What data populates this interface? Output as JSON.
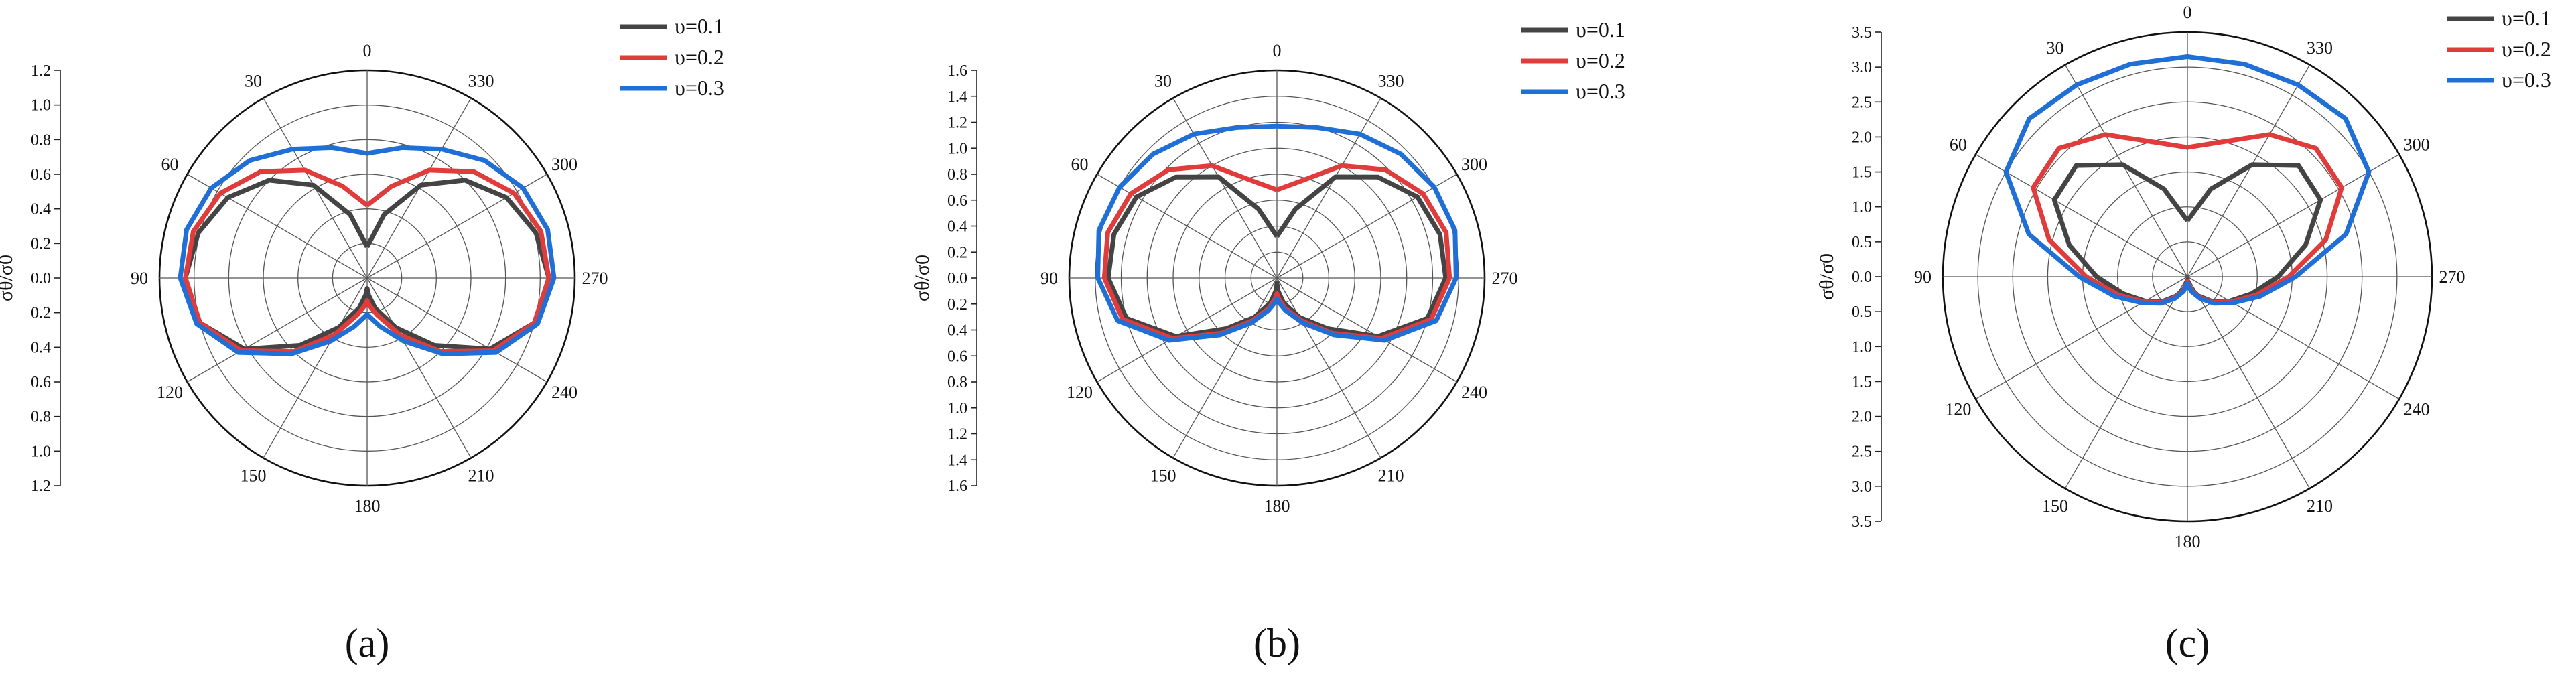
{
  "chart_data": [
    {
      "type": "polar-line",
      "panel_label": "(a)",
      "ylabel": "σθ/σ0",
      "rmax": 1.2,
      "ticks": [
        "0.0",
        "0.2",
        "0.4",
        "0.6",
        "0.8",
        "1.0",
        "1.2"
      ],
      "angle_labels": [
        "0",
        "30",
        "60",
        "90",
        "120",
        "150",
        "180",
        "210",
        "240",
        "270",
        "300",
        "330"
      ],
      "legend": [
        "υ=0.1",
        "υ=0.2",
        "υ=0.3"
      ],
      "series": [
        {
          "name": "υ=0.1",
          "color": "#444444",
          "theta": [
            0,
            15,
            30,
            45,
            60,
            75,
            90,
            105,
            120,
            135,
            150,
            165,
            175,
            180,
            185,
            195,
            210,
            225,
            240,
            255,
            270,
            285,
            300,
            315,
            330,
            345,
            360
          ],
          "r": [
            0.18,
            0.38,
            0.62,
            0.8,
            0.93,
            1.01,
            1.05,
            1.0,
            0.82,
            0.55,
            0.33,
            0.18,
            0.1,
            0.06,
            0.1,
            0.18,
            0.33,
            0.55,
            0.82,
            1.0,
            1.05,
            1.01,
            0.93,
            0.8,
            0.62,
            0.38,
            0.18
          ]
        },
        {
          "name": "υ=0.2",
          "color": "#e03c3c",
          "theta": [
            0,
            15,
            30,
            45,
            60,
            75,
            90,
            105,
            120,
            135,
            150,
            165,
            175,
            180,
            185,
            195,
            210,
            225,
            240,
            255,
            270,
            285,
            300,
            315,
            330,
            345,
            360
          ],
          "r": [
            0.42,
            0.55,
            0.72,
            0.87,
            0.98,
            1.04,
            1.05,
            1.0,
            0.84,
            0.6,
            0.38,
            0.22,
            0.16,
            0.13,
            0.16,
            0.22,
            0.38,
            0.6,
            0.84,
            1.0,
            1.05,
            1.04,
            0.98,
            0.87,
            0.72,
            0.55,
            0.42
          ]
        },
        {
          "name": "υ=0.3",
          "color": "#1f6fd6",
          "theta": [
            0,
            15,
            30,
            45,
            60,
            75,
            90,
            105,
            120,
            135,
            150,
            165,
            175,
            180,
            185,
            195,
            210,
            225,
            240,
            255,
            270,
            285,
            300,
            315,
            330,
            345,
            360
          ],
          "r": [
            0.72,
            0.78,
            0.86,
            0.96,
            1.04,
            1.08,
            1.08,
            1.02,
            0.86,
            0.62,
            0.42,
            0.29,
            0.23,
            0.21,
            0.23,
            0.29,
            0.42,
            0.62,
            0.86,
            1.02,
            1.08,
            1.08,
            1.04,
            0.96,
            0.86,
            0.78,
            0.72
          ]
        }
      ]
    },
    {
      "type": "polar-line",
      "panel_label": "(b)",
      "ylabel": "σθ/σ0",
      "rmax": 1.6,
      "ticks": [
        "0.0",
        "0.2",
        "0.4",
        "0.6",
        "0.8",
        "1.0",
        "1.2",
        "1.4",
        "1.6"
      ],
      "angle_labels": [
        "0",
        "30",
        "60",
        "90",
        "120",
        "150",
        "180",
        "210",
        "240",
        "270",
        "300",
        "330"
      ],
      "legend": [
        "υ=0.1",
        "υ=0.2",
        "υ=0.3"
      ],
      "series": [
        {
          "name": "υ=0.1",
          "color": "#444444",
          "theta": [
            0,
            15,
            30,
            45,
            60,
            75,
            90,
            105,
            120,
            135,
            150,
            165,
            175,
            180,
            185,
            195,
            210,
            225,
            240,
            255,
            270,
            285,
            300,
            315,
            330,
            345,
            360
          ],
          "r": [
            0.32,
            0.55,
            0.9,
            1.1,
            1.25,
            1.3,
            1.3,
            1.2,
            0.9,
            0.55,
            0.35,
            0.2,
            0.1,
            0.04,
            0.1,
            0.2,
            0.35,
            0.55,
            0.9,
            1.2,
            1.3,
            1.3,
            1.25,
            1.1,
            0.9,
            0.55,
            0.32
          ]
        },
        {
          "name": "υ=0.2",
          "color": "#e03c3c",
          "theta": [
            0,
            15,
            30,
            45,
            60,
            75,
            90,
            105,
            120,
            135,
            150,
            165,
            175,
            180,
            185,
            195,
            210,
            225,
            240,
            255,
            270,
            285,
            300,
            315,
            330,
            345,
            360
          ],
          "r": [
            0.68,
            0.78,
            1.0,
            1.18,
            1.3,
            1.35,
            1.33,
            1.23,
            0.93,
            0.6,
            0.38,
            0.24,
            0.16,
            0.12,
            0.16,
            0.24,
            0.38,
            0.6,
            0.93,
            1.23,
            1.33,
            1.35,
            1.3,
            1.18,
            1.0,
            0.78,
            0.68
          ]
        },
        {
          "name": "υ=0.3",
          "color": "#1f6fd6",
          "theta": [
            0,
            15,
            30,
            45,
            60,
            75,
            90,
            105,
            120,
            135,
            150,
            165,
            175,
            180,
            185,
            195,
            210,
            225,
            240,
            255,
            270,
            285,
            300,
            315,
            330,
            345,
            360
          ],
          "r": [
            1.17,
            1.2,
            1.28,
            1.35,
            1.4,
            1.42,
            1.38,
            1.27,
            0.96,
            0.62,
            0.4,
            0.26,
            0.19,
            0.16,
            0.19,
            0.26,
            0.4,
            0.62,
            0.96,
            1.27,
            1.38,
            1.42,
            1.4,
            1.35,
            1.28,
            1.2,
            1.17
          ]
        }
      ]
    },
    {
      "type": "polar-line",
      "panel_label": "(c)",
      "ylabel": "σθ/σ0",
      "rmax": 3.5,
      "ticks": [
        "0.0",
        "0.5",
        "1.0",
        "1.5",
        "2.0",
        "2.5",
        "3.0",
        "3.5"
      ],
      "angle_labels": [
        "0",
        "30",
        "60",
        "90",
        "120",
        "150",
        "180",
        "210",
        "240",
        "270",
        "300",
        "330"
      ],
      "legend": [
        "υ=0.1",
        "υ=0.2",
        "υ=0.3"
      ],
      "series": [
        {
          "name": "υ=0.1",
          "color": "#444444",
          "theta": [
            0,
            15,
            30,
            45,
            60,
            75,
            90,
            105,
            120,
            135,
            150,
            165,
            175,
            180,
            185,
            195,
            210,
            225,
            240,
            255,
            270,
            285,
            300,
            315,
            330,
            345,
            360
          ],
          "r": [
            0.8,
            1.3,
            1.85,
            2.25,
            2.2,
            1.75,
            1.3,
            0.95,
            0.7,
            0.5,
            0.32,
            0.18,
            0.08,
            0.05,
            0.08,
            0.18,
            0.32,
            0.5,
            0.7,
            0.95,
            1.3,
            1.75,
            2.2,
            2.25,
            1.85,
            1.3,
            0.8
          ]
        },
        {
          "name": "υ=0.2",
          "color": "#e03c3c",
          "theta": [
            0,
            15,
            30,
            45,
            60,
            75,
            90,
            105,
            120,
            135,
            150,
            165,
            175,
            180,
            185,
            195,
            210,
            225,
            240,
            255,
            270,
            285,
            300,
            315,
            330,
            345,
            360
          ],
          "r": [
            1.85,
            2.0,
            2.35,
            2.6,
            2.55,
            2.05,
            1.45,
            1.02,
            0.72,
            0.52,
            0.34,
            0.2,
            0.1,
            0.07,
            0.1,
            0.2,
            0.34,
            0.52,
            0.72,
            1.02,
            1.45,
            2.05,
            2.55,
            2.6,
            2.35,
            2.0,
            1.85
          ]
        },
        {
          "name": "υ=0.3",
          "color": "#1f6fd6",
          "theta": [
            0,
            15,
            30,
            45,
            60,
            75,
            90,
            105,
            120,
            135,
            150,
            165,
            175,
            180,
            185,
            195,
            210,
            225,
            240,
            255,
            270,
            285,
            300,
            315,
            330,
            345,
            360
          ],
          "r": [
            3.15,
            3.15,
            3.17,
            3.2,
            3.0,
            2.35,
            1.55,
            1.08,
            0.75,
            0.54,
            0.36,
            0.22,
            0.12,
            0.09,
            0.12,
            0.22,
            0.36,
            0.54,
            0.75,
            1.08,
            1.55,
            2.35,
            3.0,
            3.2,
            3.17,
            3.15,
            3.15
          ]
        }
      ]
    }
  ]
}
